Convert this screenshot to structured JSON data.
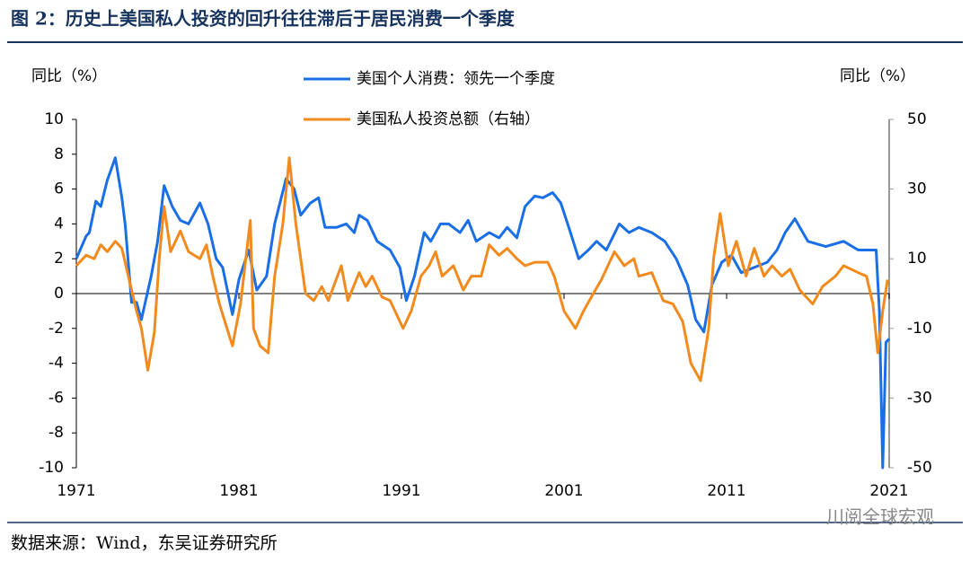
{
  "title": "图 2：历史上美国私人投资的回升往往滞后于居民消费一个季度",
  "source": "数据来源：Wind，东吴证券研究所",
  "watermark": "川阅全球宏观",
  "chart_data": {
    "type": "line",
    "y_label": "同比（%）",
    "y2_label": "同比（%）",
    "xlim": [
      1971,
      2021
    ],
    "xticks": [
      1971,
      1981,
      1991,
      2001,
      2011,
      2021
    ],
    "ylim": [
      -10,
      10
    ],
    "yticks": [
      -10,
      -8,
      -6,
      -4,
      -2,
      0,
      2,
      4,
      6,
      8,
      10
    ],
    "y2lim": [
      -50,
      50
    ],
    "y2ticks": [
      -50,
      -30,
      -10,
      10,
      30,
      50
    ],
    "series": [
      {
        "name": "美国个人消费：领先一个季度",
        "color": "#1a6ee6",
        "axis": "y",
        "x": [
          1971,
          1971.6,
          1971.8,
          1972.2,
          1972.5,
          1972.9,
          1973.4,
          1973.8,
          1974.0,
          1974.4,
          1974.7,
          1975.0,
          1975.6,
          1976.0,
          1976.4,
          1976.9,
          1977.4,
          1977.9,
          1978.6,
          1979.1,
          1979.6,
          1980.0,
          1980.6,
          1981.0,
          1981.6,
          1982.1,
          1982.7,
          1983.2,
          1983.9,
          1984.4,
          1984.8,
          1985.4,
          1985.9,
          1986.3,
          1987.0,
          1987.6,
          1988.1,
          1988.4,
          1988.9,
          1989.5,
          1990.3,
          1990.9,
          1991.3,
          1991.8,
          1992.4,
          1992.8,
          1993.4,
          1993.9,
          1994.6,
          1995.1,
          1995.6,
          1996.4,
          1997.0,
          1997.5,
          1998.1,
          1998.6,
          1999.2,
          1999.7,
          2000.3,
          2000.8,
          2001.4,
          2001.9,
          2002.5,
          2003.0,
          2003.6,
          2004.4,
          2005.0,
          2005.6,
          2006.4,
          2007.2,
          2007.9,
          2008.6,
          2009.1,
          2009.6,
          2010.1,
          2010.7,
          2011.3,
          2011.9,
          2012.7,
          2013.5,
          2014.1,
          2014.6,
          2015.2,
          2016.0,
          2017.1,
          2018.2,
          2019.1,
          2020.2,
          2020.4,
          2020.6,
          2020.8,
          2021
        ],
        "values": [
          2,
          3.3,
          3.5,
          5.3,
          5,
          6.5,
          7.8,
          5.5,
          4,
          -0.5,
          -0.5,
          -1.5,
          1,
          3,
          6.2,
          5,
          4.2,
          4,
          5.2,
          4,
          2,
          1.5,
          -1.2,
          0.8,
          2.5,
          0.2,
          1,
          4,
          6.6,
          6,
          4.5,
          5.2,
          5.5,
          3.8,
          3.8,
          4,
          3.5,
          4.5,
          4.2,
          3,
          2.5,
          1.5,
          -0.4,
          1,
          3.5,
          3,
          4,
          4,
          3.5,
          4.2,
          3,
          3.5,
          3.2,
          3.8,
          3.2,
          5,
          5.6,
          5.5,
          5.8,
          5.2,
          3.5,
          2,
          2.5,
          3,
          2.5,
          4,
          3.5,
          3.8,
          3.5,
          3,
          2,
          0.5,
          -1.5,
          -2.2,
          0.5,
          1.8,
          2.2,
          1.2,
          1.5,
          1.8,
          2.5,
          3.5,
          4.3,
          3,
          2.7,
          3,
          2.5,
          2.5,
          -1,
          -10,
          -2.8,
          -2.6
        ]
      },
      {
        "name": "美国私人投资总额（右轴）",
        "color": "#f28a1e",
        "axis": "y2",
        "x": [
          1971,
          1971.6,
          1972.1,
          1972.5,
          1972.9,
          1973.4,
          1973.8,
          1974.0,
          1974.3,
          1974.7,
          1975.0,
          1975.4,
          1975.8,
          1976.1,
          1976.4,
          1976.8,
          1977.4,
          1977.9,
          1978.6,
          1979.0,
          1979.4,
          1979.8,
          1980.6,
          1981.1,
          1981.7,
          1981.9,
          1982.3,
          1982.8,
          1983.2,
          1983.7,
          1984.1,
          1984.5,
          1985.1,
          1985.6,
          1986.1,
          1986.5,
          1987.3,
          1987.7,
          1988.4,
          1988.8,
          1989.2,
          1989.8,
          1990.3,
          1991.1,
          1991.6,
          1992.2,
          1992.7,
          1993.1,
          1993.5,
          1994.2,
          1994.8,
          1995.3,
          1995.9,
          1996.4,
          1997.0,
          1997.5,
          1998.1,
          1998.6,
          1999.2,
          2000.0,
          2000.4,
          2001.0,
          2001.7,
          2002.2,
          2002.8,
          2003.3,
          2004.1,
          2004.7,
          2005.3,
          2005.6,
          2006.4,
          2007.1,
          2007.7,
          2008.3,
          2008.8,
          2009.4,
          2009.9,
          2010.2,
          2010.6,
          2011.1,
          2011.6,
          2012.2,
          2012.7,
          2013.3,
          2013.8,
          2014.4,
          2014.9,
          2015.5,
          2016.3,
          2016.9,
          2017.7,
          2018.2,
          2019.1,
          2019.6,
          2020.0,
          2020.3,
          2020.6,
          2020.9
        ],
        "values": [
          8,
          11,
          10,
          14,
          12,
          15,
          13,
          9,
          3,
          -5,
          -10,
          -22,
          -11,
          10,
          25,
          12,
          18,
          12,
          10,
          14,
          5,
          -3,
          -15,
          -3,
          21,
          -10,
          -15,
          -17,
          5,
          20,
          39,
          20,
          0,
          -2,
          2,
          -2,
          8,
          -2,
          6,
          2,
          5,
          -1,
          -2,
          -10,
          -5,
          5,
          8,
          12,
          5,
          8,
          1,
          5,
          5,
          14,
          11,
          13,
          10,
          8,
          9,
          9,
          5,
          -5,
          -10,
          -5,
          0,
          4,
          12,
          8,
          10,
          5,
          6,
          -2,
          -3,
          -8,
          -20,
          -25,
          -10,
          10,
          23,
          8,
          15,
          5,
          13,
          5,
          8,
          5,
          7,
          1,
          -3,
          2,
          5,
          8,
          6,
          5,
          -3,
          -17,
          -5,
          4
        ]
      }
    ]
  }
}
